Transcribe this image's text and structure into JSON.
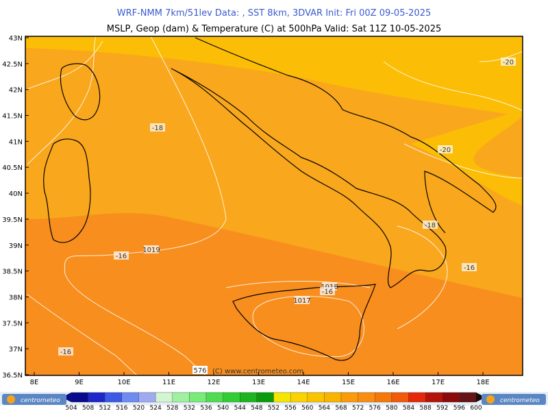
{
  "header": {
    "line1": "WRF-NMM 7km/51lev  Data: , SST 8km, 3DVAR  Init: Fri 00Z 09-05-2025",
    "line2": "MSLP, Geop (dam) & Temperature (C) at 500hPa  Valid: Sat 11Z 10-05-2025"
  },
  "map": {
    "lat_labels": [
      "43N",
      "42.5N",
      "42N",
      "41.5N",
      "41N",
      "40.5N",
      "40N",
      "39.5N",
      "39N",
      "38.5N",
      "38N",
      "37.5N",
      "37N",
      "36.5N"
    ],
    "lon_labels": [
      "8E",
      "9E",
      "10E",
      "11E",
      "12E",
      "13E",
      "14E",
      "15E",
      "16E",
      "17E",
      "18E"
    ],
    "contour_labels": [
      "-18",
      "-20",
      "-20",
      "-18",
      "-16",
      "-16",
      "-16",
      "1019",
      "1017",
      "1018",
      "-16",
      "576"
    ],
    "copyright": "(C) www.centrometeo.com"
  },
  "colorbar": {
    "labels": [
      "504",
      "508",
      "512",
      "516",
      "520",
      "524",
      "528",
      "532",
      "536",
      "540",
      "544",
      "548",
      "552",
      "556",
      "560",
      "564",
      "568",
      "572",
      "576",
      "580",
      "584",
      "588",
      "592",
      "596",
      "600"
    ],
    "colors": [
      "#0a0a8c",
      "#1e28c8",
      "#3c5ae6",
      "#6e8cf0",
      "#a0aaf0",
      "#d2f5d2",
      "#a0f0a0",
      "#78eb78",
      "#50dc50",
      "#32cd32",
      "#1eb41e",
      "#0a9b0a",
      "#f5e600",
      "#fad200",
      "#fac300",
      "#fab400",
      "#fa9b0a",
      "#fa8c14",
      "#f5780a",
      "#f05a0a",
      "#e6280a",
      "#b4140a",
      "#8c0a0a",
      "#641414"
    ],
    "logo_left": "centrometeo",
    "logo_right": "centrometeo"
  }
}
